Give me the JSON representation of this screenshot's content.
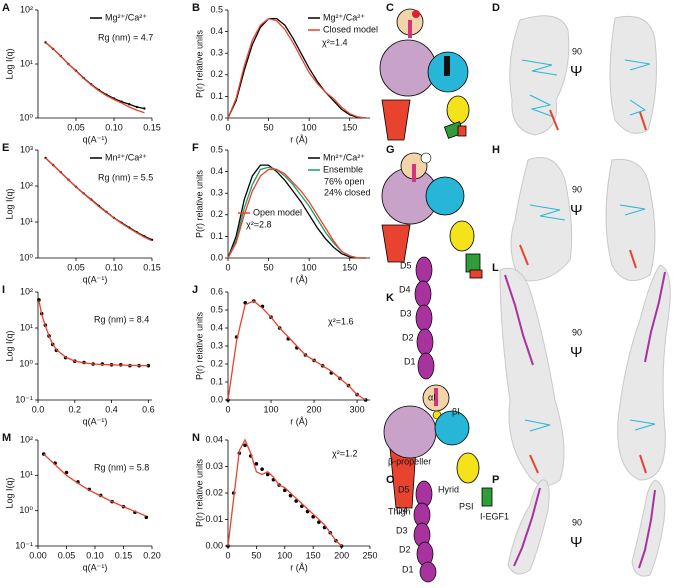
{
  "chart_data": [
    {
      "panel": "A",
      "type": "line",
      "log_y": true,
      "x_label": "q(A⁻¹)",
      "y_label": "Log I(q)",
      "legend": "upper right",
      "xlim": [
        0,
        0.15
      ],
      "xticks": [
        0.05,
        {
          "value": 0.1,
          "label": "0.10"
        },
        0.15
      ],
      "ylim": [
        1,
        100
      ],
      "yticks": [
        {
          "value": 1,
          "label": "10⁰"
        },
        {
          "value": 10,
          "label": "10¹"
        },
        {
          "value": 100,
          "label": "10²"
        }
      ],
      "x": [
        0.01,
        0.02,
        0.03,
        0.04,
        0.05,
        0.06,
        0.07,
        0.08,
        0.09,
        0.1,
        0.11,
        0.12,
        0.13,
        0.14
      ],
      "series": [
        {
          "name": "Mg²⁺/Ca²⁺",
          "color": "#000000",
          "style": "line-points",
          "values": [
            25,
            19,
            14,
            10,
            7.5,
            5.5,
            4.2,
            3.3,
            2.7,
            2.3,
            2.0,
            1.8,
            1.6,
            1.5
          ]
        },
        {
          "color": "#e8432e",
          "style": "line",
          "values": [
            25,
            19,
            14,
            10,
            7.4,
            5.4,
            4.1,
            3.2,
            2.6,
            2.2,
            1.9,
            1.6,
            1.4,
            1.25
          ]
        }
      ],
      "annotations": [
        "Rg (nm) = 4.7"
      ]
    },
    {
      "panel": "B",
      "type": "line",
      "x_label": "r (Å)",
      "y_label": "P(r) relative units",
      "legend": "upper right",
      "xlim": [
        0,
        175
      ],
      "xticks": [
        0,
        50,
        100,
        150
      ],
      "ylim": [
        0,
        0.5
      ],
      "yticks": [
        {
          "value": 0,
          "label": "0.0"
        },
        0.1,
        0.2,
        0.3,
        0.4,
        0.5
      ],
      "x": [
        0,
        10,
        20,
        30,
        40,
        50,
        60,
        70,
        80,
        90,
        100,
        110,
        120,
        130,
        140,
        150,
        160,
        170
      ],
      "series": [
        {
          "name": "Mg²⁺/Ca²⁺",
          "color": "#000000",
          "style": "line",
          "values": [
            0,
            0.08,
            0.22,
            0.34,
            0.42,
            0.46,
            0.46,
            0.43,
            0.37,
            0.3,
            0.23,
            0.17,
            0.12,
            0.08,
            0.04,
            0.015,
            0.003,
            0
          ]
        },
        {
          "name": "Closed model",
          "color": "#e8432e",
          "style": "line",
          "values": [
            0,
            0.09,
            0.24,
            0.36,
            0.43,
            0.46,
            0.45,
            0.41,
            0.35,
            0.28,
            0.21,
            0.16,
            0.12,
            0.09,
            0.05,
            0.02,
            0.005,
            0
          ]
        }
      ],
      "annotations": [
        "χ²=1.4"
      ]
    },
    {
      "panel": "E",
      "type": "line",
      "log_y": true,
      "x_label": "q(A⁻¹)",
      "y_label": "Log I(q)",
      "legend": "upper right",
      "xlim": [
        0,
        0.15
      ],
      "xticks": [
        0.05,
        {
          "value": 0.1,
          "label": "0.10"
        },
        0.15
      ],
      "ylim": [
        1,
        1000
      ],
      "yticks": [
        {
          "value": 1,
          "label": "10⁰"
        },
        {
          "value": 10,
          "label": "10¹"
        },
        {
          "value": 100,
          "label": "10²"
        },
        {
          "value": 1000,
          "label": "10³"
        }
      ],
      "x": [
        0.01,
        0.02,
        0.03,
        0.04,
        0.05,
        0.06,
        0.07,
        0.08,
        0.09,
        0.1,
        0.11,
        0.12,
        0.13,
        0.14,
        0.15
      ],
      "series": [
        {
          "name": "Mn²⁺/Ca²⁺",
          "color": "#000000",
          "style": "line-points",
          "values": [
            600,
            380,
            240,
            150,
            95,
            62,
            42,
            28,
            19,
            13,
            9.5,
            7,
            5.2,
            4,
            3.2
          ]
        },
        {
          "color": "#e8432e",
          "style": "line",
          "values": [
            600,
            380,
            238,
            148,
            94,
            61,
            41,
            27,
            18.5,
            12.8,
            9.2,
            6.7,
            5,
            3.8,
            3
          ]
        }
      ],
      "annotations": [
        "Rg (nm) = 5.5"
      ]
    },
    {
      "panel": "F",
      "type": "line",
      "x_label": "r (Å)",
      "y_label": "P(r) relative units",
      "legend": "upper right",
      "xlim": [
        0,
        175
      ],
      "xticks": [
        0,
        50,
        100,
        150
      ],
      "ylim": [
        0,
        0.5
      ],
      "yticks": [
        {
          "value": 0,
          "label": "0.0"
        },
        0.1,
        0.2,
        0.3,
        0.4,
        0.5
      ],
      "x": [
        0,
        10,
        20,
        30,
        40,
        50,
        60,
        70,
        80,
        90,
        100,
        110,
        120,
        130,
        140,
        150,
        160,
        170
      ],
      "series": [
        {
          "name": "Mn²⁺/Ca²⁺",
          "color": "#000000",
          "style": "line",
          "values": [
            0,
            0.1,
            0.27,
            0.38,
            0.43,
            0.43,
            0.4,
            0.36,
            0.31,
            0.26,
            0.2,
            0.14,
            0.09,
            0.05,
            0.02,
            0.005,
            0,
            0
          ]
        },
        {
          "name": "Ensemble",
          "color": "#1a9e6a",
          "style": "line",
          "values": [
            0,
            0.08,
            0.23,
            0.34,
            0.41,
            0.42,
            0.41,
            0.38,
            0.34,
            0.29,
            0.24,
            0.18,
            0.12,
            0.07,
            0.03,
            0.01,
            0,
            0
          ]
        },
        {
          "name": "Open model",
          "color": "#e8432e",
          "style": "line",
          "legend": "lower left",
          "values": [
            0,
            0.07,
            0.2,
            0.31,
            0.38,
            0.41,
            0.41,
            0.39,
            0.35,
            0.31,
            0.26,
            0.2,
            0.14,
            0.08,
            0.03,
            0.01,
            0,
            0
          ]
        }
      ],
      "annotations": [
        "76% open",
        "24% closed",
        "χ²=2.8"
      ]
    },
    {
      "panel": "I",
      "type": "line",
      "log_y": true,
      "x_label": "q(A⁻¹)",
      "y_label": "Log I(q)",
      "xlim": [
        0,
        0.62
      ],
      "xticks": [
        {
          "value": 0,
          "label": "0.0"
        },
        0.2,
        0.4,
        0.6
      ],
      "ylim": [
        0.1,
        100
      ],
      "yticks": [
        {
          "value": 0.1,
          "label": "10⁻¹"
        },
        {
          "value": 1,
          "label": "10⁰"
        },
        {
          "value": 10,
          "label": "10¹"
        },
        {
          "value": 100,
          "label": "10²"
        }
      ],
      "x": [
        0.005,
        0.02,
        0.04,
        0.06,
        0.08,
        0.1,
        0.15,
        0.2,
        0.25,
        0.3,
        0.35,
        0.4,
        0.45,
        0.5,
        0.55,
        0.6
      ],
      "series": [
        {
          "color": "#000000",
          "style": "points",
          "values": [
            60,
            25,
            12,
            6,
            3.5,
            2.4,
            1.5,
            1.2,
            1.1,
            1.0,
            1.0,
            0.95,
            0.95,
            0.9,
            0.9,
            0.9
          ]
        },
        {
          "color": "#e8432e",
          "style": "line",
          "values": [
            58,
            24,
            11.5,
            6,
            3.6,
            2.5,
            1.55,
            1.2,
            1.08,
            1.0,
            0.97,
            0.95,
            0.93,
            0.92,
            0.9,
            0.9
          ]
        }
      ],
      "annotations": [
        "Rg (nm) = 8.4"
      ]
    },
    {
      "panel": "J",
      "type": "line",
      "x_label": "r (Å)",
      "y_label": "P(r) relative units",
      "xlim": [
        0,
        330
      ],
      "xticks": [
        0,
        100,
        200,
        300
      ],
      "ylim": [
        0,
        0.6
      ],
      "yticks": [
        {
          "value": 0,
          "label": "0.0"
        },
        0.1,
        0.2,
        0.3,
        0.4,
        0.5,
        0.6
      ],
      "x": [
        0,
        20,
        40,
        60,
        80,
        100,
        120,
        140,
        160,
        180,
        200,
        220,
        240,
        260,
        280,
        300,
        320
      ],
      "series": [
        {
          "color": "#000000",
          "style": "points",
          "values": [
            0,
            0.35,
            0.54,
            0.55,
            0.52,
            0.46,
            0.4,
            0.34,
            0.29,
            0.25,
            0.22,
            0.19,
            0.15,
            0.12,
            0.08,
            0.03,
            0
          ]
        },
        {
          "color": "#e8432e",
          "style": "line",
          "values": [
            0,
            0.33,
            0.53,
            0.55,
            0.51,
            0.46,
            0.4,
            0.35,
            0.3,
            0.25,
            0.22,
            0.19,
            0.16,
            0.12,
            0.08,
            0.03,
            0
          ]
        }
      ],
      "annotations": [
        "χ²=1.6"
      ]
    },
    {
      "panel": "M",
      "type": "line",
      "log_y": true,
      "x_label": "q(A⁻¹)",
      "y_label": "Log I(q)",
      "xlim": [
        0,
        0.2
      ],
      "xticks": [
        {
          "value": 0,
          "label": "0.00"
        },
        0.05,
        {
          "value": 0.1,
          "label": "0.10"
        },
        0.15,
        {
          "value": 0.2,
          "label": "0.20"
        }
      ],
      "ylim": [
        0.1,
        100
      ],
      "yticks": [
        {
          "value": 0.1,
          "label": "10⁻¹"
        },
        {
          "value": 1,
          "label": "10⁰"
        },
        {
          "value": 10,
          "label": "10¹"
        },
        {
          "value": 100,
          "label": "10²"
        }
      ],
      "x": [
        0.01,
        0.03,
        0.05,
        0.07,
        0.09,
        0.11,
        0.13,
        0.15,
        0.17,
        0.19
      ],
      "series": [
        {
          "color": "#000000",
          "style": "points",
          "values": [
            40,
            22,
            12,
            6.5,
            4,
            2.7,
            1.8,
            1.3,
            0.9,
            0.65
          ]
        },
        {
          "color": "#e8432e",
          "style": "line",
          "values": [
            40,
            20,
            10,
            6,
            3.8,
            2.6,
            1.8,
            1.3,
            0.95,
            0.7
          ]
        }
      ],
      "annotations": [
        "Rg (nm) = 5.8"
      ]
    },
    {
      "panel": "N",
      "type": "line",
      "x_label": "r (Å)",
      "y_label": "P(r) relative units",
      "xlim": [
        0,
        250
      ],
      "xticks": [
        0,
        50,
        100,
        150,
        200,
        250
      ],
      "ylim": [
        0,
        0.04
      ],
      "yticks": [
        {
          "value": 0,
          "label": "0.00"
        },
        0.01,
        0.02,
        0.03,
        0.04
      ],
      "x": [
        0,
        10,
        20,
        30,
        40,
        50,
        60,
        70,
        80,
        90,
        100,
        110,
        120,
        130,
        140,
        150,
        160,
        170,
        180,
        190,
        200
      ],
      "series": [
        {
          "color": "#000000",
          "style": "points",
          "values": [
            0,
            0.02,
            0.035,
            0.038,
            0.034,
            0.031,
            0.029,
            0.027,
            0.025,
            0.023,
            0.021,
            0.019,
            0.017,
            0.015,
            0.013,
            0.011,
            0.009,
            0.007,
            0.005,
            0.002,
            0
          ]
        },
        {
          "color": "#e8432e",
          "style": "line",
          "values": [
            0,
            0.018,
            0.036,
            0.04,
            0.035,
            0.028,
            0.027,
            0.028,
            0.026,
            0.023,
            0.022,
            0.02,
            0.018,
            0.016,
            0.014,
            0.012,
            0.01,
            0.008,
            0.005,
            0.002,
            0
          ]
        }
      ],
      "annotations": [
        "χ²=1.2"
      ]
    }
  ],
  "diagrams": [
    {
      "panel": "C"
    },
    {
      "panel": "D",
      "rotation": 90,
      "symbol": "Ψ"
    },
    {
      "panel": "G"
    },
    {
      "panel": "H",
      "rotation": 90,
      "symbol": "Ψ"
    },
    {
      "panel": "K",
      "labels": [
        "D5",
        "D4",
        "D3",
        "D2",
        "D1",
        "αI",
        "βI",
        "β-propeller",
        "Thigh",
        "Hyrid",
        "PSI",
        "I-EGF1"
      ]
    },
    {
      "panel": "L",
      "rotation": 90,
      "symbol": "Ψ"
    },
    {
      "panel": "O",
      "labels": [
        "D5",
        "D4",
        "D3",
        "D2",
        "D1"
      ]
    },
    {
      "panel": "P",
      "rotation": 90,
      "symbol": "Ψ"
    }
  ]
}
